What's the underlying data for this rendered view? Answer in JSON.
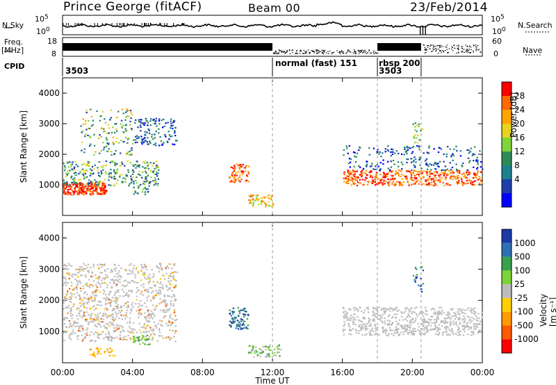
{
  "header": {
    "station": "Prince George (fitACF)",
    "beam": "Beam 00",
    "date": "23/Feb/2014"
  },
  "top_strips": {
    "nsky_label": "N.Sky",
    "nsearch_label": "N.Search",
    "freq_label_1": "Freq.",
    "freq_label_2": "[MHz]",
    "nave_label": "Nave",
    "cpid_label": "CPID",
    "nsky_ticks": [
      "10^5",
      "10^0"
    ],
    "nsearch_ticks": [
      "10^5",
      "10^0"
    ],
    "freq_ticks": [
      "18",
      "8"
    ],
    "nave_ticks": [
      "60",
      "0"
    ],
    "cpid_segments": [
      {
        "label": "3503",
        "start_h": 0,
        "end_h": 12
      },
      {
        "label": "normal (fast)  151",
        "start_h": 12,
        "end_h": 18
      },
      {
        "label": "rbsp  200",
        "start_h": 18,
        "end_h": 20.5
      },
      {
        "label": "3503",
        "start_h": 18,
        "end_h": 20.5
      }
    ]
  },
  "chart_data": [
    {
      "type": "heatmap",
      "title": "",
      "xlabel": "",
      "ylabel": "Slant Range [km]",
      "xlim": [
        0,
        24
      ],
      "ylim": [
        0,
        4500
      ],
      "yticks": [
        1000,
        2000,
        3000,
        4000
      ],
      "colorbar": {
        "label": "Power [dB]",
        "ticks": [
          "28",
          "24",
          "20",
          "16",
          "12",
          "8",
          "4"
        ],
        "colors": [
          "#ff0000",
          "#ff6a00",
          "#ffa500",
          "#e8d21e",
          "#7fd43a",
          "#2e8b57",
          "#1f7f8f",
          "#1e3fa8",
          "#0000ff"
        ]
      }
    },
    {
      "type": "heatmap",
      "title": "",
      "xlabel": "Time UT",
      "ylabel": "Slant Range [km]",
      "xlim": [
        0,
        24
      ],
      "ylim": [
        0,
        4500
      ],
      "yticks": [
        1000,
        2000,
        3000,
        4000
      ],
      "xticks": [
        "00:00",
        "04:00",
        "08:00",
        "12:00",
        "16:00",
        "20:00",
        "00:00"
      ],
      "colorbar": {
        "label": "Velocity [m s⁻¹]",
        "ticks": [
          "1000",
          "500",
          "100",
          "25",
          "-25",
          "-100",
          "-500",
          "-1000"
        ],
        "colors": [
          "#1a3aa8",
          "#2f6fb0",
          "#3aa050",
          "#7cd23a",
          "#bcbcbc",
          "#ffd000",
          "#ff9a00",
          "#ff5a00",
          "#ff0000"
        ]
      }
    }
  ],
  "colors": {
    "axis": "#000000",
    "dashed_markers": "#9a9a9a",
    "ground_scatter": "#bdbdbd"
  }
}
